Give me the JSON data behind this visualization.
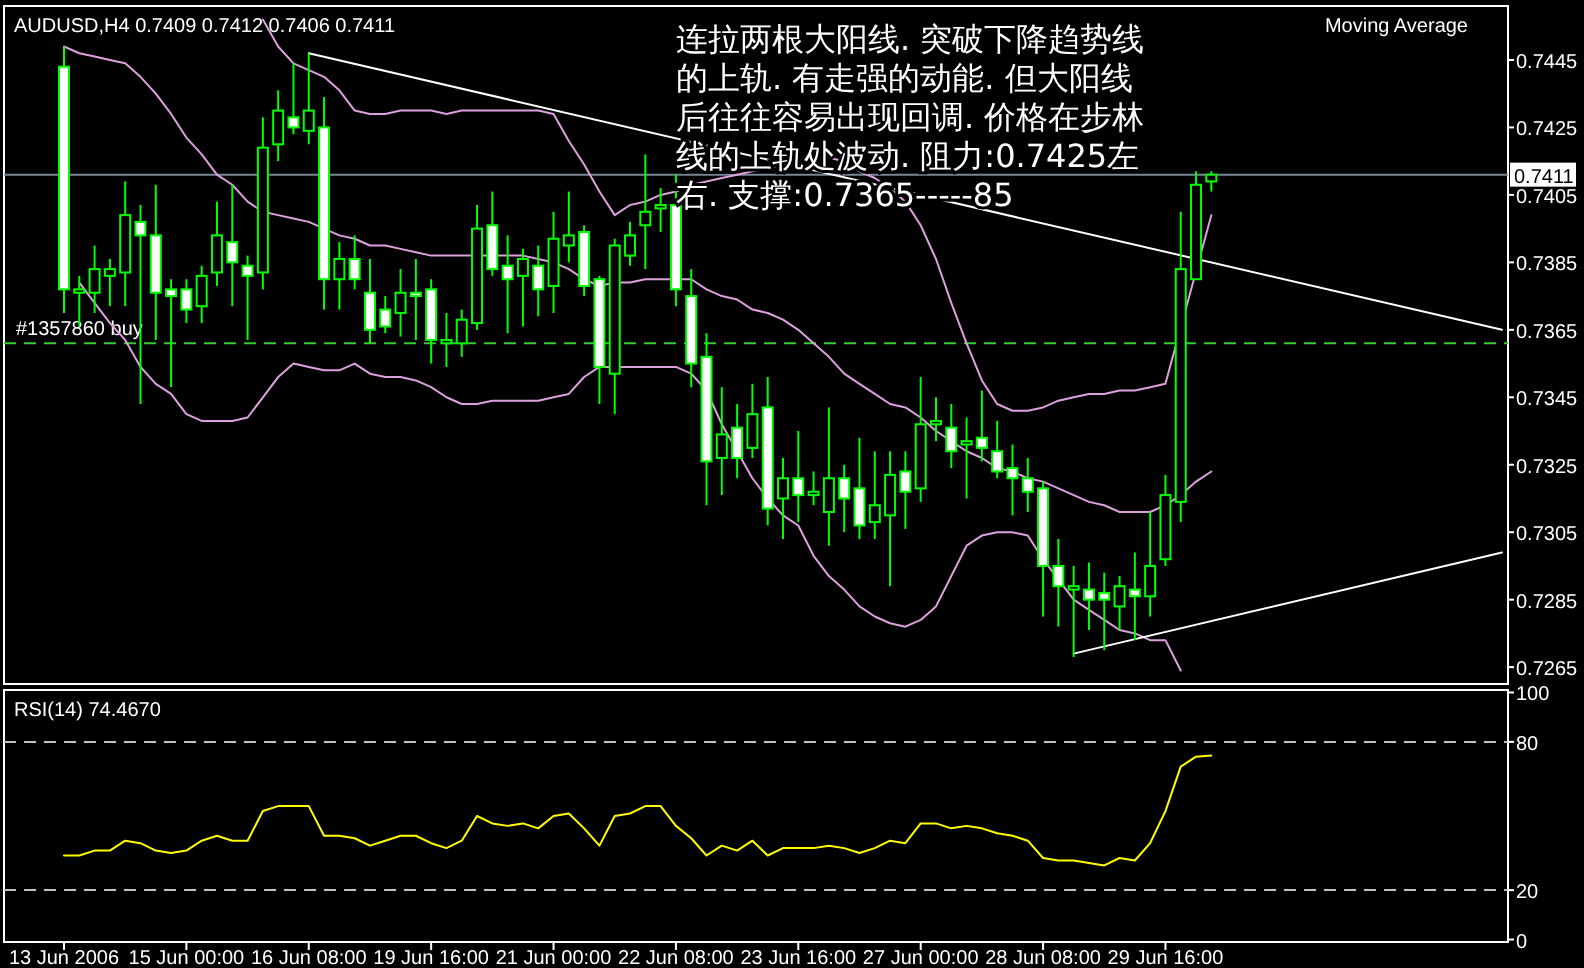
{
  "chart_data": [
    {
      "type": "candlestick",
      "title": "AUDUSD,H4  0.7409 0.7412 0.7406 0.7411",
      "color": "#00ff00",
      "ohlc": [
        [
          0.7443,
          0.7449,
          0.737,
          0.7377
        ],
        [
          0.7376,
          0.7381,
          0.7366,
          0.7377
        ],
        [
          0.7376,
          0.739,
          0.737,
          0.7383
        ],
        [
          0.7381,
          0.7386,
          0.7372,
          0.7383
        ],
        [
          0.7382,
          0.7409,
          0.7372,
          0.7399
        ],
        [
          0.7397,
          0.7402,
          0.7343,
          0.7393
        ],
        [
          0.7393,
          0.7408,
          0.7362,
          0.7376
        ],
        [
          0.7377,
          0.738,
          0.7348,
          0.7375
        ],
        [
          0.7377,
          0.738,
          0.7367,
          0.7371
        ],
        [
          0.7372,
          0.7384,
          0.7367,
          0.7381
        ],
        [
          0.7382,
          0.7403,
          0.7378,
          0.7393
        ],
        [
          0.7391,
          0.7408,
          0.7372,
          0.7385
        ],
        [
          0.7384,
          0.7387,
          0.7362,
          0.7381
        ],
        [
          0.7382,
          0.7428,
          0.7377,
          0.7419
        ],
        [
          0.742,
          0.7436,
          0.7415,
          0.743
        ],
        [
          0.7428,
          0.7444,
          0.7423,
          0.7425
        ],
        [
          0.7424,
          0.7447,
          0.742,
          0.743
        ],
        [
          0.7425,
          0.7434,
          0.7371,
          0.738
        ],
        [
          0.738,
          0.7391,
          0.7371,
          0.7386
        ],
        [
          0.7386,
          0.7393,
          0.7377,
          0.738
        ],
        [
          0.7376,
          0.7386,
          0.7361,
          0.7365
        ],
        [
          0.7371,
          0.7375,
          0.7364,
          0.7366
        ],
        [
          0.737,
          0.7383,
          0.7363,
          0.7376
        ],
        [
          0.7376,
          0.7386,
          0.7362,
          0.7375
        ],
        [
          0.7377,
          0.738,
          0.7355,
          0.7362
        ],
        [
          0.7361,
          0.737,
          0.7354,
          0.7362
        ],
        [
          0.7361,
          0.7371,
          0.7357,
          0.7368
        ],
        [
          0.7367,
          0.7402,
          0.7365,
          0.7395
        ],
        [
          0.7396,
          0.7406,
          0.7381,
          0.7383
        ],
        [
          0.7384,
          0.7393,
          0.7364,
          0.738
        ],
        [
          0.7381,
          0.7389,
          0.7366,
          0.7386
        ],
        [
          0.7384,
          0.739,
          0.7369,
          0.7377
        ],
        [
          0.7378,
          0.74,
          0.737,
          0.7392
        ],
        [
          0.739,
          0.7406,
          0.7385,
          0.7393
        ],
        [
          0.7394,
          0.7396,
          0.7375,
          0.7378
        ],
        [
          0.738,
          0.7381,
          0.7343,
          0.7354
        ],
        [
          0.7352,
          0.7392,
          0.734,
          0.739
        ],
        [
          0.7387,
          0.7397,
          0.7384,
          0.7393
        ],
        [
          0.7396,
          0.7417,
          0.7383,
          0.74
        ],
        [
          0.7401,
          0.7407,
          0.7394,
          0.7402
        ],
        [
          0.7402,
          0.7411,
          0.7372,
          0.7377
        ],
        [
          0.7375,
          0.7383,
          0.7348,
          0.7355
        ],
        [
          0.7357,
          0.7364,
          0.7313,
          0.7326
        ],
        [
          0.7327,
          0.7348,
          0.7316,
          0.7334
        ],
        [
          0.7336,
          0.7343,
          0.7321,
          0.7327
        ],
        [
          0.733,
          0.7349,
          0.7327,
          0.734
        ],
        [
          0.7342,
          0.7351,
          0.7307,
          0.7312
        ],
        [
          0.7315,
          0.7327,
          0.7303,
          0.7321
        ],
        [
          0.7321,
          0.7335,
          0.7308,
          0.7316
        ],
        [
          0.7316,
          0.7323,
          0.7313,
          0.7317
        ],
        [
          0.7311,
          0.7342,
          0.7301,
          0.7321
        ],
        [
          0.7321,
          0.7325,
          0.7305,
          0.7315
        ],
        [
          0.7318,
          0.7333,
          0.7303,
          0.7307
        ],
        [
          0.7308,
          0.7329,
          0.7303,
          0.7313
        ],
        [
          0.731,
          0.7329,
          0.7289,
          0.7322
        ],
        [
          0.7323,
          0.7329,
          0.7306,
          0.7317
        ],
        [
          0.7318,
          0.7351,
          0.7314,
          0.7337
        ],
        [
          0.7337,
          0.7345,
          0.7332,
          0.7338
        ],
        [
          0.7336,
          0.7343,
          0.7324,
          0.7329
        ],
        [
          0.7331,
          0.7339,
          0.7315,
          0.7332
        ],
        [
          0.7333,
          0.7347,
          0.7326,
          0.733
        ],
        [
          0.7329,
          0.7338,
          0.7321,
          0.7323
        ],
        [
          0.7324,
          0.7331,
          0.731,
          0.7321
        ],
        [
          0.7321,
          0.7327,
          0.7311,
          0.7317
        ],
        [
          0.7318,
          0.732,
          0.728,
          0.7295
        ],
        [
          0.7295,
          0.7303,
          0.7277,
          0.7289
        ],
        [
          0.7288,
          0.7295,
          0.7268,
          0.7289
        ],
        [
          0.7288,
          0.7296,
          0.7276,
          0.7285
        ],
        [
          0.7287,
          0.7293,
          0.727,
          0.7285
        ],
        [
          0.7283,
          0.7292,
          0.7276,
          0.7289
        ],
        [
          0.7288,
          0.7299,
          0.7273,
          0.7286
        ],
        [
          0.7286,
          0.7311,
          0.728,
          0.7295
        ],
        [
          0.7297,
          0.7322,
          0.7295,
          0.7316
        ],
        [
          0.7314,
          0.74,
          0.7308,
          0.7383
        ],
        [
          0.738,
          0.7412,
          0.738,
          0.7408
        ],
        [
          0.7409,
          0.7412,
          0.7406,
          0.7411
        ],
        null,
        null,
        null,
        null,
        null,
        null,
        null,
        null,
        null,
        null,
        null,
        null,
        null,
        null,
        null,
        null,
        null,
        null,
        null
      ],
      "series": [
        {
          "type": "line",
          "color": "#dda0dd",
          "values": [
            null,
            null,
            null,
            null,
            null,
            null,
            null,
            null,
            null,
            null,
            null,
            null,
            null,
            0.7457,
            0.7449,
            0.7444,
            0.7442,
            0.744,
            0.7436,
            0.743,
            0.7429,
            0.7429,
            0.743,
            0.743,
            0.743,
            0.7429,
            0.743,
            0.743,
            0.743,
            0.743,
            0.743,
            0.743,
            0.7429,
            0.7421,
            0.7414,
            0.7406,
            0.7399,
            0.7402,
            0.7403,
            0.7405,
            0.7406,
            0.7408,
            0.7409,
            0.741,
            0.7411,
            0.7412,
            0.7413,
            0.7414,
            0.7415,
            0.7416,
            0.7416,
            0.7415,
            0.7412,
            0.741,
            0.7407,
            0.7403,
            0.7396,
            0.7386,
            0.7373,
            0.7361,
            0.735,
            0.7343,
            0.7341,
            0.7341,
            0.7342,
            0.7344,
            0.7345,
            0.7346,
            0.7346,
            0.7347,
            0.7347,
            0.7348,
            0.7349,
            null,
            null,
            0.7399,
            null,
            null,
            null,
            null,
            null,
            null,
            null,
            null,
            null,
            null,
            null,
            null,
            null,
            null,
            null,
            null,
            null,
            null,
            null
          ]
        },
        {
          "type": "line",
          "color": "#dda0dd",
          "values": [
            0.7449,
            0.7447,
            0.7446,
            0.7445,
            0.7444,
            0.744,
            0.7435,
            0.7429,
            0.7422,
            0.7417,
            0.7411,
            0.7408,
            0.7403,
            0.74,
            0.7399,
            0.7398,
            0.7397,
            0.7395,
            0.7393,
            0.7392,
            0.739,
            0.739,
            0.7389,
            0.7388,
            0.7387,
            0.7387,
            0.7387,
            0.7387,
            0.7387,
            0.7387,
            0.7387,
            0.7386,
            0.7385,
            0.7383,
            0.738,
            0.7378,
            0.7379,
            0.7379,
            0.738,
            0.738,
            0.738,
            0.738,
            0.7377,
            0.7375,
            0.7374,
            0.7371,
            0.737,
            0.7368,
            0.7365,
            0.7361,
            0.7357,
            0.7352,
            0.7349,
            0.7346,
            0.7343,
            0.7342,
            0.7339,
            0.7335,
            0.7332,
            0.7329,
            0.7327,
            0.7324,
            0.7323,
            0.7321,
            0.732,
            0.7318,
            0.7316,
            0.7314,
            0.7313,
            0.7311,
            0.7311,
            0.7311,
            0.7313,
            0.7316,
            0.732,
            0.7323,
            null,
            null,
            null,
            null,
            null,
            null,
            null,
            null,
            null,
            null,
            null,
            null,
            null,
            null,
            null,
            null,
            null,
            null,
            null
          ]
        },
        {
          "type": "line",
          "color": "#dda0dd",
          "values": [
            null,
            0.7379,
            0.7373,
            0.7367,
            0.7362,
            0.7354,
            0.7349,
            0.7346,
            0.734,
            0.7338,
            0.7338,
            0.7338,
            0.7339,
            0.7345,
            0.7351,
            0.7355,
            0.7354,
            0.7353,
            0.7353,
            0.7355,
            0.7352,
            0.7351,
            0.7351,
            0.735,
            0.7348,
            0.7345,
            0.7343,
            0.7343,
            0.7344,
            0.7344,
            0.7344,
            0.7344,
            0.7345,
            0.7346,
            0.7351,
            0.7354,
            0.7354,
            0.7354,
            0.7354,
            0.7354,
            0.7354,
            0.7352,
            0.7347,
            0.7337,
            0.7329,
            0.7321,
            0.7315,
            0.731,
            0.7307,
            0.7298,
            0.7292,
            0.7288,
            0.7283,
            0.728,
            0.7278,
            0.7277,
            0.7279,
            0.7283,
            0.7292,
            0.7301,
            0.7304,
            0.7305,
            0.7305,
            0.7304,
            0.7297,
            0.7291,
            0.7285,
            0.7282,
            0.7279,
            0.7276,
            0.7275,
            0.7273,
            0.7273,
            0.7264,
            null,
            null,
            null,
            null,
            null,
            null,
            null,
            null,
            null,
            null,
            null,
            null,
            null,
            null,
            null,
            null,
            null,
            null,
            null,
            null,
            null
          ]
        },
        {
          "type": "line",
          "color": "#ffffff",
          "values": [
            null,
            null,
            null,
            null,
            null,
            null,
            null,
            null,
            null,
            null,
            null,
            null,
            null,
            null,
            null,
            null,
            0.7447,
            null,
            null,
            null,
            null,
            null,
            null,
            null,
            null,
            null,
            null,
            null,
            null,
            null,
            null,
            null,
            null,
            null,
            null,
            null,
            null,
            null,
            null,
            null,
            null,
            null,
            null,
            null,
            null,
            null,
            null,
            null,
            null,
            null,
            null,
            null,
            null,
            null,
            null,
            null,
            null,
            null,
            null,
            null,
            null,
            null,
            null,
            null,
            null,
            null,
            null,
            null,
            null,
            null,
            null,
            null,
            null,
            null,
            null,
            null,
            null,
            null,
            null,
            null,
            null,
            null,
            null,
            null,
            null,
            null,
            null,
            null,
            null,
            null,
            null,
            null,
            null,
            null,
            0.7365
          ]
        },
        {
          "type": "line",
          "color": "#ffffff",
          "values": [
            null,
            null,
            null,
            null,
            null,
            null,
            null,
            null,
            null,
            null,
            null,
            null,
            null,
            null,
            null,
            null,
            null,
            null,
            null,
            null,
            null,
            null,
            null,
            null,
            null,
            null,
            null,
            null,
            null,
            null,
            null,
            null,
            null,
            null,
            null,
            null,
            null,
            null,
            null,
            null,
            null,
            null,
            null,
            null,
            null,
            null,
            null,
            null,
            null,
            null,
            null,
            null,
            null,
            null,
            null,
            null,
            null,
            null,
            null,
            null,
            null,
            null,
            null,
            null,
            null,
            null,
            0.7269,
            null,
            null,
            null,
            null,
            null,
            null,
            null,
            null,
            null,
            null,
            null,
            null,
            null,
            null,
            null,
            null,
            null,
            null,
            null,
            null,
            null,
            null,
            null,
            null,
            null,
            null,
            null,
            0.7299
          ]
        }
      ],
      "ref_lines": [
        {
          "axis": "y",
          "value": 0.7411,
          "label": "0.7411",
          "color": "#778899",
          "line_style": "solid"
        },
        {
          "axis": "y",
          "value": 0.7361,
          "label": "#1357860 buy",
          "color": "#32cd32",
          "line_style": "dashed"
        }
      ],
      "annotations": [
        "Moving Average",
        "连拉两根大阳线. 突破下降趋势线的上轨. 有走强的动能. 但大阳线后往往容易出现回调. 价格在步林线的上轨处波动. 阻力:0.7425左右. 支撑:0.7365-----85"
      ],
      "ylim": [
        0.726,
        0.7461
      ],
      "yticks": [
        0.7445,
        0.7425,
        0.7405,
        0.7385,
        0.7365,
        0.7345,
        0.7325,
        0.7305,
        0.7285,
        0.7265
      ],
      "tick_labels": "y"
    },
    {
      "type": "line",
      "title": "RSI(14) 74.4670",
      "categories": [
        "13 Jun 2006",
        null,
        null,
        null,
        null,
        null,
        null,
        null,
        "15 Jun 00:00",
        null,
        null,
        null,
        null,
        null,
        null,
        null,
        "16 Jun 08:00",
        null,
        null,
        null,
        null,
        null,
        null,
        null,
        "19 Jun 16:00",
        null,
        null,
        null,
        null,
        null,
        null,
        null,
        "21 Jun 00:00",
        null,
        null,
        null,
        null,
        null,
        null,
        null,
        "22 Jun 08:00",
        null,
        null,
        null,
        null,
        null,
        null,
        null,
        "23 Jun 16:00",
        null,
        null,
        null,
        null,
        null,
        null,
        null,
        "27 Jun 00:00",
        null,
        null,
        null,
        null,
        null,
        null,
        null,
        "28 Jun 08:00",
        null,
        null,
        null,
        null,
        null,
        null,
        null,
        "29 Jun 16:00",
        null,
        null,
        null,
        null,
        null,
        null,
        null,
        null,
        null,
        null,
        null,
        null,
        null,
        null,
        null,
        null,
        null,
        null,
        null,
        null,
        null,
        null
      ],
      "series": [
        {
          "type": "line",
          "color": "#ffff00",
          "values": [
            34,
            34,
            36,
            36,
            40,
            39,
            36,
            35,
            36,
            40,
            42,
            40,
            40,
            52,
            54,
            54,
            54,
            42,
            42,
            41,
            38,
            40,
            42,
            42,
            39,
            37,
            40,
            50,
            47,
            46,
            47,
            45,
            50,
            51,
            45,
            38,
            50,
            51,
            54,
            54,
            46,
            41,
            34,
            38,
            36,
            40,
            34,
            37,
            37,
            37,
            38,
            37,
            35,
            37,
            40,
            39,
            47,
            47,
            45,
            46,
            45,
            43,
            42,
            40,
            33,
            32,
            32,
            31,
            30,
            33,
            32,
            39,
            52,
            70,
            74,
            74.467,
            null,
            null,
            null,
            null,
            null,
            null,
            null,
            null,
            null,
            null,
            null,
            null,
            null,
            null,
            null,
            null,
            null,
            null,
            null
          ]
        }
      ],
      "ref_lines": [
        {
          "axis": "y",
          "value": 80,
          "color": "#c0c0c0",
          "line_style": "dashed"
        },
        {
          "axis": "y",
          "value": 20,
          "color": "#c0c0c0",
          "line_style": "dashed"
        }
      ],
      "ylim": [
        -1,
        101
      ],
      "yticks": [
        0,
        20,
        80,
        100
      ]
    }
  ]
}
